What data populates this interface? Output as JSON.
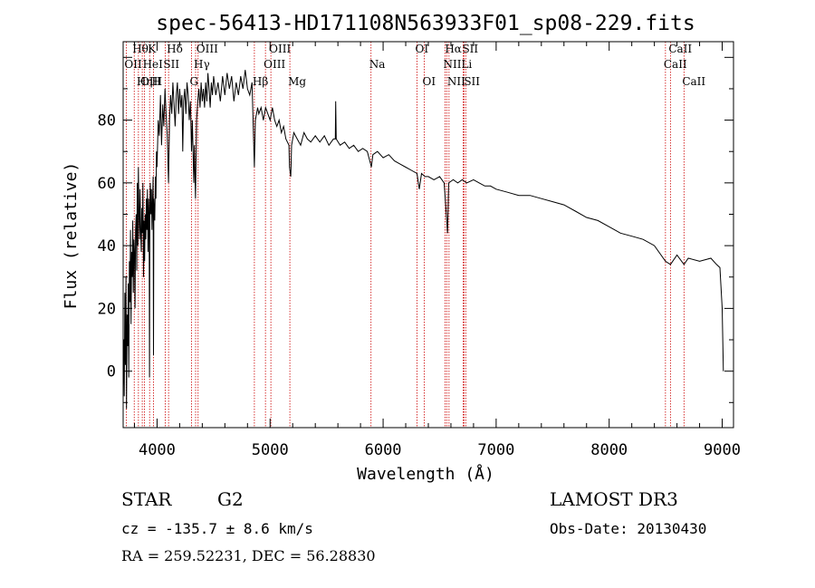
{
  "chart_data": {
    "type": "line",
    "title": "spec-56413-HD171108N563933F01_sp08-229.fits",
    "xlabel": "Wavelength (Å)",
    "ylabel": "Flux (relative)",
    "xlim": [
      3700,
      9100
    ],
    "ylim": [
      -18,
      105
    ],
    "x_ticks": [
      4000,
      5000,
      6000,
      7000,
      8000,
      9000
    ],
    "y_ticks": [
      0,
      20,
      40,
      60,
      80
    ],
    "series": [
      {
        "name": "flux",
        "points": [
          [
            3700,
            -5
          ],
          [
            3705,
            10
          ],
          [
            3710,
            -8
          ],
          [
            3715,
            25
          ],
          [
            3720,
            2
          ],
          [
            3725,
            30
          ],
          [
            3730,
            -12
          ],
          [
            3735,
            18
          ],
          [
            3740,
            8
          ],
          [
            3745,
            28
          ],
          [
            3750,
            -2
          ],
          [
            3755,
            35
          ],
          [
            3760,
            22
          ],
          [
            3765,
            45
          ],
          [
            3770,
            15
          ],
          [
            3775,
            38
          ],
          [
            3780,
            30
          ],
          [
            3785,
            48
          ],
          [
            3790,
            25
          ],
          [
            3795,
            42
          ],
          [
            3800,
            38
          ],
          [
            3805,
            20
          ],
          [
            3810,
            45
          ],
          [
            3815,
            50
          ],
          [
            3820,
            32
          ],
          [
            3825,
            60
          ],
          [
            3830,
            40
          ],
          [
            3835,
            65
          ],
          [
            3840,
            50
          ],
          [
            3845,
            42
          ],
          [
            3850,
            58
          ],
          [
            3855,
            45
          ],
          [
            3860,
            38
          ],
          [
            3865,
            52
          ],
          [
            3870,
            44
          ],
          [
            3875,
            60
          ],
          [
            3880,
            30
          ],
          [
            3885,
            48
          ],
          [
            3890,
            35
          ],
          [
            3895,
            50
          ],
          [
            3900,
            42
          ],
          [
            3905,
            55
          ],
          [
            3910,
            45
          ],
          [
            3915,
            58
          ],
          [
            3920,
            38
          ],
          [
            3925,
            55
          ],
          [
            3930,
            48
          ],
          [
            3933,
            -2
          ],
          [
            3936,
            52
          ],
          [
            3940,
            60
          ],
          [
            3945,
            50
          ],
          [
            3950,
            58
          ],
          [
            3955,
            45
          ],
          [
            3960,
            55
          ],
          [
            3965,
            62
          ],
          [
            3968,
            5
          ],
          [
            3972,
            55
          ],
          [
            3980,
            48
          ],
          [
            3985,
            62
          ],
          [
            3990,
            55
          ],
          [
            3995,
            70
          ],
          [
            4000,
            65
          ],
          [
            4010,
            80
          ],
          [
            4020,
            75
          ],
          [
            4030,
            88
          ],
          [
            4040,
            72
          ],
          [
            4050,
            85
          ],
          [
            4060,
            78
          ],
          [
            4070,
            90
          ],
          [
            4080,
            82
          ],
          [
            4090,
            75
          ],
          [
            4101,
            60
          ],
          [
            4110,
            80
          ],
          [
            4120,
            88
          ],
          [
            4130,
            82
          ],
          [
            4140,
            92
          ],
          [
            4150,
            85
          ],
          [
            4160,
            78
          ],
          [
            4170,
            88
          ],
          [
            4180,
            92
          ],
          [
            4190,
            82
          ],
          [
            4200,
            90
          ],
          [
            4210,
            84
          ],
          [
            4220,
            88
          ],
          [
            4227,
            70
          ],
          [
            4235,
            86
          ],
          [
            4245,
            90
          ],
          [
            4255,
            82
          ],
          [
            4265,
            92
          ],
          [
            4275,
            88
          ],
          [
            4285,
            80
          ],
          [
            4295,
            86
          ],
          [
            4305,
            70
          ],
          [
            4312,
            80
          ],
          [
            4325,
            60
          ],
          [
            4330,
            72
          ],
          [
            4340,
            55
          ],
          [
            4350,
            80
          ],
          [
            4360,
            86
          ],
          [
            4370,
            90
          ],
          [
            4380,
            84
          ],
          [
            4390,
            92
          ],
          [
            4400,
            86
          ],
          [
            4410,
            90
          ],
          [
            4420,
            84
          ],
          [
            4430,
            92
          ],
          [
            4440,
            86
          ],
          [
            4450,
            95
          ],
          [
            4460,
            90
          ],
          [
            4470,
            84
          ],
          [
            4480,
            92
          ],
          [
            4490,
            88
          ],
          [
            4500,
            94
          ],
          [
            4520,
            88
          ],
          [
            4540,
            92
          ],
          [
            4560,
            86
          ],
          [
            4580,
            94
          ],
          [
            4600,
            88
          ],
          [
            4620,
            95
          ],
          [
            4640,
            90
          ],
          [
            4660,
            94
          ],
          [
            4680,
            86
          ],
          [
            4700,
            92
          ],
          [
            4720,
            88
          ],
          [
            4740,
            94
          ],
          [
            4760,
            90
          ],
          [
            4780,
            96
          ],
          [
            4800,
            90
          ],
          [
            4820,
            88
          ],
          [
            4840,
            92
          ],
          [
            4861,
            65
          ],
          [
            4870,
            80
          ],
          [
            4880,
            82
          ],
          [
            4890,
            84
          ],
          [
            4900,
            82
          ],
          [
            4920,
            84
          ],
          [
            4940,
            80
          ],
          [
            4960,
            84
          ],
          [
            4980,
            82
          ],
          [
            5000,
            80
          ],
          [
            5020,
            84
          ],
          [
            5040,
            80
          ],
          [
            5060,
            78
          ],
          [
            5080,
            80
          ],
          [
            5100,
            76
          ],
          [
            5120,
            78
          ],
          [
            5140,
            74
          ],
          [
            5167,
            72
          ],
          [
            5172,
            65
          ],
          [
            5183,
            62
          ],
          [
            5190,
            72
          ],
          [
            5210,
            76
          ],
          [
            5240,
            74
          ],
          [
            5270,
            72
          ],
          [
            5300,
            76
          ],
          [
            5330,
            74
          ],
          [
            5360,
            73
          ],
          [
            5400,
            75
          ],
          [
            5440,
            73
          ],
          [
            5480,
            75
          ],
          [
            5520,
            72
          ],
          [
            5560,
            74
          ],
          [
            5577,
            74
          ],
          [
            5580,
            86
          ],
          [
            5585,
            74
          ],
          [
            5620,
            72
          ],
          [
            5660,
            73
          ],
          [
            5700,
            71
          ],
          [
            5740,
            72
          ],
          [
            5780,
            70
          ],
          [
            5820,
            71
          ],
          [
            5860,
            70
          ],
          [
            5890,
            66
          ],
          [
            5896,
            65
          ],
          [
            5910,
            69
          ],
          [
            5950,
            70
          ],
          [
            6000,
            68
          ],
          [
            6050,
            69
          ],
          [
            6100,
            67
          ],
          [
            6150,
            66
          ],
          [
            6200,
            65
          ],
          [
            6250,
            64
          ],
          [
            6300,
            63
          ],
          [
            6320,
            58
          ],
          [
            6340,
            63
          ],
          [
            6370,
            62
          ],
          [
            6400,
            62
          ],
          [
            6450,
            61
          ],
          [
            6500,
            62
          ],
          [
            6540,
            60
          ],
          [
            6563,
            48
          ],
          [
            6570,
            44
          ],
          [
            6580,
            60
          ],
          [
            6620,
            61
          ],
          [
            6660,
            60
          ],
          [
            6700,
            61
          ],
          [
            6740,
            60
          ],
          [
            6800,
            61
          ],
          [
            6850,
            60
          ],
          [
            6900,
            59
          ],
          [
            6950,
            59
          ],
          [
            7000,
            58
          ],
          [
            7100,
            57
          ],
          [
            7200,
            56
          ],
          [
            7300,
            56
          ],
          [
            7400,
            55
          ],
          [
            7500,
            54
          ],
          [
            7600,
            53
          ],
          [
            7700,
            51
          ],
          [
            7800,
            49
          ],
          [
            7900,
            48
          ],
          [
            8000,
            46
          ],
          [
            8100,
            44
          ],
          [
            8200,
            43
          ],
          [
            8300,
            42
          ],
          [
            8400,
            40
          ],
          [
            8498,
            35
          ],
          [
            8542,
            34
          ],
          [
            8600,
            37
          ],
          [
            8662,
            34
          ],
          [
            8700,
            36
          ],
          [
            8800,
            35
          ],
          [
            8900,
            36
          ],
          [
            8950,
            34
          ],
          [
            8980,
            33
          ],
          [
            9000,
            20
          ],
          [
            9010,
            0
          ]
        ]
      }
    ],
    "spectral_lines": [
      {
        "label": "Hθ",
        "wavelength": 3798
      },
      {
        "label": "OII",
        "wavelength": 3727
      },
      {
        "label": "OIII",
        "wavelength": 3869
      },
      {
        "label": "K",
        "wavelength": 3934
      },
      {
        "label": "HeI",
        "wavelength": 3889
      },
      {
        "label": "Hη",
        "wavelength": 3835
      },
      {
        "label": "SII",
        "wavelength": 4072
      },
      {
        "label": "H",
        "wavelength": 3968
      },
      {
        "label": "Hδ",
        "wavelength": 4102
      },
      {
        "label": "OIII",
        "wavelength": 4363
      },
      {
        "label": "Hγ",
        "wavelength": 4341
      },
      {
        "label": "G",
        "wavelength": 4305
      },
      {
        "label": "Hβ",
        "wavelength": 4861
      },
      {
        "label": "OIII",
        "wavelength": 5007
      },
      {
        "label": "OIII",
        "wavelength": 4959
      },
      {
        "label": "Mg",
        "wavelength": 5175
      },
      {
        "label": "Na",
        "wavelength": 5893
      },
      {
        "label": "OI",
        "wavelength": 6300
      },
      {
        "label": "OI",
        "wavelength": 6364
      },
      {
        "label": "Hα",
        "wavelength": 6563
      },
      {
        "label": "NII",
        "wavelength": 6548
      },
      {
        "label": "NII",
        "wavelength": 6583
      },
      {
        "label": "SII",
        "wavelength": 6716
      },
      {
        "label": "Li",
        "wavelength": 6708
      },
      {
        "label": "SII",
        "wavelength": 6731
      },
      {
        "label": "CaII",
        "wavelength": 8542
      },
      {
        "label": "CaII",
        "wavelength": 8498
      },
      {
        "label": "CaII",
        "wavelength": 8662
      }
    ]
  },
  "info": {
    "object_class": "STAR",
    "subclass": "G2",
    "survey": "LAMOST DR3",
    "redshift": "cz = -135.7 ± 8.6 km/s",
    "obs_date": "Obs-Date: 20130430",
    "coords": "RA = 259.52231, DEC =  56.28830"
  },
  "colors": {
    "line_marker": "#cc0000",
    "spectrum": "#000000",
    "frame": "#000000"
  }
}
